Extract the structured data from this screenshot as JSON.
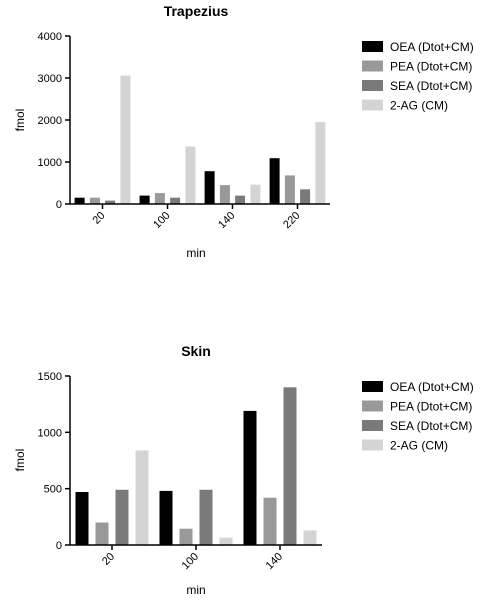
{
  "chart_data": [
    {
      "type": "bar",
      "title": "Trapezius",
      "xlabel": "min",
      "ylabel": "fmol",
      "categories": [
        "20",
        "100",
        "140",
        "220"
      ],
      "ylim": [
        0,
        4000
      ],
      "yticks": [
        "0",
        "1000",
        "2000",
        "3000",
        "4000"
      ],
      "series": [
        {
          "name": "OEA (Dtot+CM)",
          "color": "#000000",
          "values": [
            150,
            200,
            780,
            1090
          ]
        },
        {
          "name": "PEA  (Dtot+CM)",
          "color": "#999999",
          "values": [
            150,
            260,
            450,
            680
          ]
        },
        {
          "name": "SEA  (Dtot+CM)",
          "color": "#7a7a7a",
          "values": [
            80,
            150,
            200,
            350
          ]
        },
        {
          "name": "2-AG (CM)",
          "color": "#d4d4d4",
          "values": [
            3060,
            1370,
            460,
            1950
          ]
        }
      ],
      "legend_position": "right",
      "grid": false
    },
    {
      "type": "bar",
      "title": "Skin",
      "xlabel": "min",
      "ylabel": "fmol",
      "categories": [
        "20",
        "100",
        "140"
      ],
      "ylim": [
        0,
        1500
      ],
      "yticks": [
        "0",
        "500",
        "1000",
        "1500"
      ],
      "series": [
        {
          "name": "OEA (Dtot+CM)",
          "color": "#000000",
          "values": [
            470,
            480,
            1190
          ]
        },
        {
          "name": "PEA  (Dtot+CM)",
          "color": "#999999",
          "values": [
            200,
            145,
            420
          ]
        },
        {
          "name": "SEA  (Dtot+CM)",
          "color": "#7a7a7a",
          "values": [
            490,
            490,
            1400
          ]
        },
        {
          "name": "2-AG (CM)",
          "color": "#d4d4d4",
          "values": [
            840,
            65,
            130
          ]
        }
      ],
      "legend_position": "right",
      "grid": false
    }
  ]
}
